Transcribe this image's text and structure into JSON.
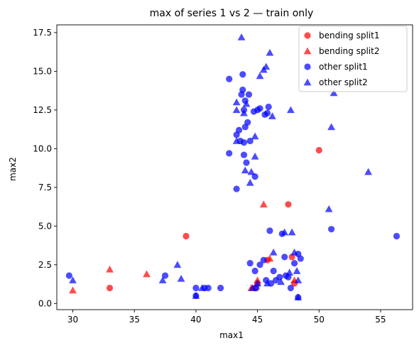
{
  "chart_data": {
    "type": "scatter",
    "title": "max of series 1 vs 2 — train only",
    "xlabel": "max1",
    "ylabel": "max2",
    "xlim": [
      28.7,
      57.6
    ],
    "ylim": [
      -0.4,
      18.0
    ],
    "xticks": [
      30,
      35,
      40,
      45,
      50,
      55
    ],
    "yticks": [
      0.0,
      2.5,
      5.0,
      7.5,
      10.0,
      12.5,
      15.0,
      17.5
    ],
    "xtick_labels": [
      "30",
      "35",
      "40",
      "45",
      "50",
      "55"
    ],
    "ytick_labels": [
      "0.0",
      "2.5",
      "5.0",
      "7.5",
      "10.0",
      "12.5",
      "15.0",
      "17.5"
    ],
    "grid": false,
    "legend_position": "top-right",
    "series": [
      {
        "name": "bending split1",
        "marker": "circle",
        "color": "#ff0000",
        "points": [
          [
            33.0,
            1.0
          ],
          [
            39.2,
            4.35
          ],
          [
            47.5,
            6.4
          ],
          [
            50.0,
            9.9
          ],
          [
            47.8,
            3.0
          ],
          [
            45.8,
            2.8
          ],
          [
            48.0,
            1.3
          ],
          [
            45.0,
            1.3
          ],
          [
            44.8,
            1.0
          ]
        ]
      },
      {
        "name": "bending split2",
        "marker": "triangle",
        "color": "#ff0000",
        "points": [
          [
            30.0,
            0.85
          ],
          [
            33.0,
            2.2
          ],
          [
            36.0,
            1.9
          ],
          [
            45.5,
            6.4
          ],
          [
            46.0,
            2.9
          ],
          [
            48.0,
            1.5
          ],
          [
            45.0,
            1.5
          ],
          [
            44.5,
            1.0
          ]
        ]
      },
      {
        "name": "other split1",
        "marker": "circle",
        "color": "#0000ff",
        "points": [
          [
            29.7,
            1.8
          ],
          [
            37.5,
            1.8
          ],
          [
            40.0,
            1.0
          ],
          [
            40.0,
            0.5
          ],
          [
            40.7,
            1.0
          ],
          [
            41.0,
            1.0
          ],
          [
            42.0,
            1.0
          ],
          [
            42.7,
            14.5
          ],
          [
            42.7,
            9.7
          ],
          [
            43.3,
            10.9
          ],
          [
            43.3,
            7.4
          ],
          [
            43.5,
            11.2
          ],
          [
            43.6,
            10.5
          ],
          [
            43.7,
            13.5
          ],
          [
            43.8,
            14.8
          ],
          [
            43.8,
            13.8
          ],
          [
            43.9,
            12.5
          ],
          [
            43.9,
            10.4
          ],
          [
            43.9,
            9.6
          ],
          [
            44.0,
            11.4
          ],
          [
            44.0,
            13.1
          ],
          [
            44.1,
            9.1
          ],
          [
            44.2,
            11.7
          ],
          [
            44.3,
            13.5
          ],
          [
            44.4,
            10.5
          ],
          [
            44.7,
            12.4
          ],
          [
            44.8,
            8.2
          ],
          [
            45.0,
            12.5
          ],
          [
            45.2,
            12.6
          ],
          [
            45.6,
            12.2
          ],
          [
            45.8,
            12.3
          ],
          [
            45.9,
            12.7
          ],
          [
            46.0,
            4.7
          ],
          [
            44.4,
            2.6
          ],
          [
            44.8,
            2.1
          ],
          [
            44.9,
            1.0
          ],
          [
            45.2,
            2.5
          ],
          [
            45.5,
            2.8
          ],
          [
            45.7,
            1.5
          ],
          [
            46.1,
            1.3
          ],
          [
            46.3,
            2.1
          ],
          [
            46.5,
            1.5
          ],
          [
            46.8,
            1.7
          ],
          [
            47.0,
            4.5
          ],
          [
            47.2,
            3.0
          ],
          [
            47.3,
            1.8
          ],
          [
            47.5,
            1.7
          ],
          [
            47.7,
            1.0
          ],
          [
            48.0,
            2.6
          ],
          [
            48.3,
            3.2
          ],
          [
            48.5,
            2.9
          ],
          [
            48.3,
            0.4
          ],
          [
            51.0,
            4.8
          ],
          [
            56.3,
            4.35
          ]
        ]
      },
      {
        "name": "other split2",
        "marker": "triangle",
        "color": "#0000ff",
        "points": [
          [
            30.0,
            1.5
          ],
          [
            37.3,
            1.5
          ],
          [
            38.5,
            2.5
          ],
          [
            38.8,
            1.6
          ],
          [
            40.0,
            0.5
          ],
          [
            40.5,
            1.0
          ],
          [
            43.3,
            13.0
          ],
          [
            43.3,
            12.5
          ],
          [
            43.3,
            10.5
          ],
          [
            43.7,
            17.2
          ],
          [
            43.9,
            12.3
          ],
          [
            44.0,
            8.6
          ],
          [
            44.1,
            12.9
          ],
          [
            44.4,
            7.8
          ],
          [
            44.5,
            8.5
          ],
          [
            44.8,
            10.8
          ],
          [
            44.8,
            9.5
          ],
          [
            45.2,
            14.7
          ],
          [
            45.5,
            15.1
          ],
          [
            45.7,
            15.3
          ],
          [
            46.0,
            16.2
          ],
          [
            46.2,
            12.1
          ],
          [
            47.7,
            12.5
          ],
          [
            46.3,
            3.3
          ],
          [
            47.2,
            4.6
          ],
          [
            47.8,
            4.6
          ],
          [
            48.0,
            3.3
          ],
          [
            48.2,
            2.1
          ],
          [
            47.6,
            2.0
          ],
          [
            48.3,
            1.5
          ],
          [
            46.9,
            1.4
          ],
          [
            45.8,
            1.3
          ],
          [
            45.0,
            1.3
          ],
          [
            44.6,
            1.0
          ],
          [
            48.3,
            0.4
          ],
          [
            50.8,
            6.1
          ],
          [
            51.0,
            11.4
          ],
          [
            51.2,
            13.6
          ],
          [
            54.0,
            8.5
          ]
        ]
      }
    ]
  }
}
